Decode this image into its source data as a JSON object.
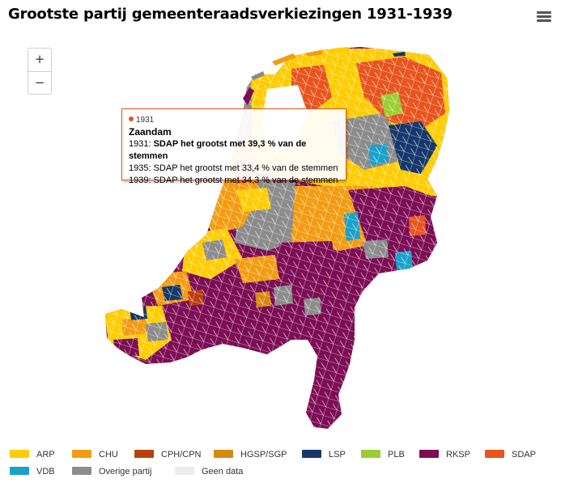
{
  "title": "Grootste partij gemeenteraadsverkiezingen 1931-1939",
  "zoom": {
    "plus": "+",
    "minus": "−"
  },
  "menu_icon": "hamburger-menu-icon",
  "tooltip": {
    "year": "1931",
    "city": "Zaandam",
    "line1_prefix": "1931: ",
    "line1_bold": "SDAP het grootst met 39,3 % van de stemmen",
    "line2": "1935: SDAP het grootst met 33,4 % van de stemmen",
    "line3": "1939: SDAP het grootst met 34,3 % van de stemmen",
    "accent": "#e0571e"
  },
  "legend": [
    {
      "label": "ARP",
      "color": "#ffcc00"
    },
    {
      "label": "CHU",
      "color": "#f39c12"
    },
    {
      "label": "CPH/CPN",
      "color": "#b8400d"
    },
    {
      "label": "HGSP/SGP",
      "color": "#d68910"
    },
    {
      "label": "LSP",
      "color": "#16386b"
    },
    {
      "label": "PLB",
      "color": "#9acd32"
    },
    {
      "label": "RKSP",
      "color": "#7d0d54"
    },
    {
      "label": "SDAP",
      "color": "#e8541e"
    },
    {
      "label": "VDB",
      "color": "#1aa1c9"
    },
    {
      "label": "Overige partij",
      "color": "#8c8c8c"
    },
    {
      "label": "Geen data",
      "color": "#ececec"
    }
  ]
}
